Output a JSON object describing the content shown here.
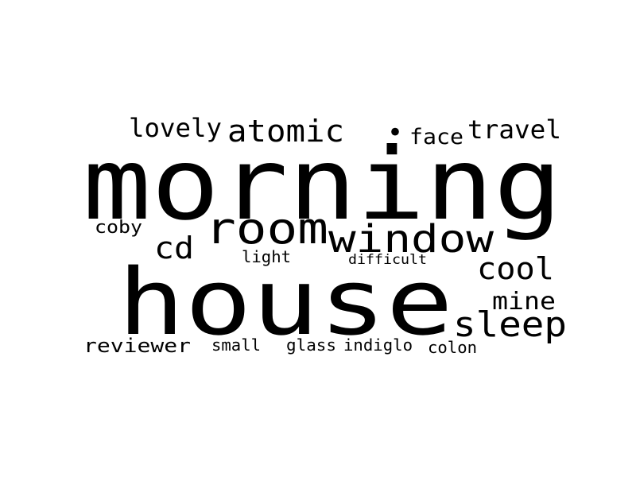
{
  "word_cloud": {
    "text_color": "#000000",
    "background_color": "#ffffff",
    "words": [
      {
        "text": "morning",
        "weight": 100
      },
      {
        "text": "house",
        "weight": 95
      },
      {
        "text": "room",
        "weight": 45
      },
      {
        "text": "window",
        "weight": 42
      },
      {
        "text": "sleep",
        "weight": 38
      },
      {
        "text": "atomic",
        "weight": 32
      },
      {
        "text": "cool",
        "weight": 32
      },
      {
        "text": "travel",
        "weight": 28
      },
      {
        "text": "lovely",
        "weight": 28
      },
      {
        "text": "cd",
        "weight": 30
      },
      {
        "text": "mine",
        "weight": 27
      },
      {
        "text": "face",
        "weight": 22
      },
      {
        "text": "reviewer",
        "weight": 22
      },
      {
        "text": "coby",
        "weight": 19
      },
      {
        "text": "indiglo",
        "weight": 18
      },
      {
        "text": "light",
        "weight": 17
      },
      {
        "text": "small",
        "weight": 17
      },
      {
        "text": "glass",
        "weight": 17
      },
      {
        "text": "colon",
        "weight": 16
      },
      {
        "text": "difficult",
        "weight": 15
      },
      {
        "text": "•",
        "weight": 30
      }
    ]
  }
}
